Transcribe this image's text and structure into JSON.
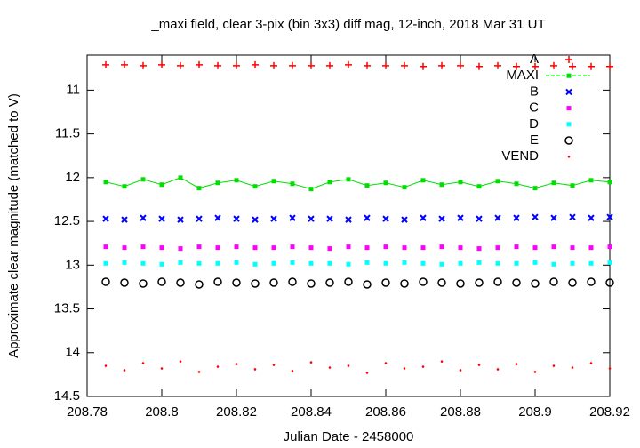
{
  "chart_data": {
    "type": "scatter",
    "title": "_maxi field, clear 3-pix (bin 3x3) diff mag, 12-inch, 2018 Mar 31 UT",
    "x_label": "Julian Date - 2458000",
    "y_label": "Approximate clear magnitude (matched to V)",
    "xlim": [
      208.78,
      208.92
    ],
    "xticks": [
      208.78,
      208.8,
      208.82,
      208.84,
      208.86,
      208.88,
      208.9,
      208.92
    ],
    "ylim": [
      10.6,
      14.5
    ],
    "y_reversed": true,
    "yticks": [
      11,
      11.5,
      12,
      12.5,
      13,
      13.5,
      14,
      14.5
    ],
    "grid": false,
    "legend": "top-right",
    "x": [
      208.785,
      208.79,
      208.795,
      208.8,
      208.805,
      208.81,
      208.815,
      208.82,
      208.825,
      208.83,
      208.835,
      208.84,
      208.845,
      208.85,
      208.855,
      208.86,
      208.865,
      208.87,
      208.875,
      208.88,
      208.885,
      208.89,
      208.895,
      208.9,
      208.905,
      208.91,
      208.915,
      208.92
    ],
    "series": [
      {
        "name": "A",
        "color": "#ff0000",
        "marker": "plus",
        "values": [
          10.71,
          10.71,
          10.72,
          10.71,
          10.72,
          10.71,
          10.72,
          10.72,
          10.71,
          10.72,
          10.72,
          10.72,
          10.72,
          10.71,
          10.72,
          10.72,
          10.72,
          10.73,
          10.72,
          10.72,
          10.73,
          10.72,
          10.73,
          10.73,
          10.72,
          10.73,
          10.73,
          10.73
        ]
      },
      {
        "name": "MAXI",
        "color": "#00e000",
        "marker": "linespoints",
        "values": [
          12.05,
          12.1,
          12.02,
          12.08,
          12.0,
          12.12,
          12.06,
          12.03,
          12.1,
          12.04,
          12.07,
          12.13,
          12.05,
          12.02,
          12.09,
          12.06,
          12.11,
          12.03,
          12.08,
          12.05,
          12.1,
          12.04,
          12.07,
          12.12,
          12.06,
          12.09,
          12.03,
          12.05
        ]
      },
      {
        "name": "B",
        "color": "#0000ff",
        "marker": "cross",
        "values": [
          12.47,
          12.48,
          12.46,
          12.47,
          12.48,
          12.47,
          12.46,
          12.47,
          12.48,
          12.47,
          12.46,
          12.47,
          12.47,
          12.48,
          12.46,
          12.47,
          12.48,
          12.46,
          12.47,
          12.46,
          12.47,
          12.46,
          12.46,
          12.45,
          12.46,
          12.45,
          12.46,
          12.45
        ]
      },
      {
        "name": "C",
        "color": "#ff00ff",
        "marker": "square",
        "values": [
          12.79,
          12.8,
          12.79,
          12.8,
          12.81,
          12.79,
          12.8,
          12.79,
          12.8,
          12.8,
          12.79,
          12.8,
          12.81,
          12.79,
          12.8,
          12.79,
          12.8,
          12.8,
          12.79,
          12.8,
          12.81,
          12.8,
          12.79,
          12.8,
          12.79,
          12.8,
          12.8,
          12.79
        ]
      },
      {
        "name": "D",
        "color": "#00ffff",
        "marker": "square",
        "values": [
          12.98,
          12.97,
          12.98,
          12.99,
          12.97,
          12.98,
          12.98,
          12.97,
          12.99,
          12.98,
          12.97,
          12.98,
          12.98,
          12.99,
          12.97,
          12.98,
          12.97,
          12.98,
          12.99,
          12.98,
          12.97,
          12.98,
          12.98,
          12.97,
          12.99,
          12.98,
          12.98,
          12.97
        ]
      },
      {
        "name": "E",
        "color": "#000000",
        "marker": "circle",
        "values": [
          13.19,
          13.2,
          13.21,
          13.19,
          13.2,
          13.22,
          13.19,
          13.2,
          13.21,
          13.2,
          13.19,
          13.21,
          13.2,
          13.19,
          13.22,
          13.2,
          13.21,
          13.19,
          13.2,
          13.21,
          13.2,
          13.19,
          13.2,
          13.21,
          13.19,
          13.2,
          13.19,
          13.2
        ]
      },
      {
        "name": "VEND",
        "color": "#ff0000",
        "marker": "dot",
        "values": [
          14.15,
          14.2,
          14.12,
          14.18,
          14.1,
          14.22,
          14.16,
          14.13,
          14.19,
          14.14,
          14.21,
          14.11,
          14.17,
          14.15,
          14.23,
          14.12,
          14.18,
          14.16,
          14.1,
          14.2,
          14.14,
          14.19,
          14.13,
          14.22,
          14.15,
          14.17,
          14.12,
          14.18
        ]
      }
    ]
  }
}
